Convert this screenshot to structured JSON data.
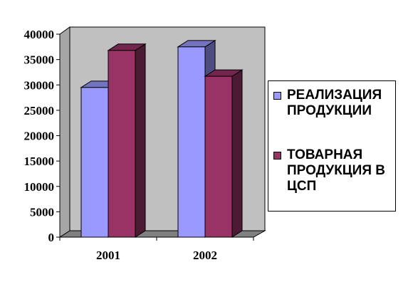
{
  "chart_data": {
    "type": "bar",
    "style": "3d-clustered-column",
    "categories": [
      "2001",
      "2002"
    ],
    "series": [
      {
        "name": "РЕАЛИЗАЦИЯ ПРОДУКЦИИ",
        "values": [
          29500,
          37500
        ],
        "color": "#9999ff"
      },
      {
        "name": "ТОВАРНАЯ ПРОДУКЦИЯ В ЦСП",
        "values": [
          36800,
          31700
        ],
        "color": "#993366"
      }
    ],
    "ylim": [
      0,
      40000
    ],
    "yticks": [
      "0",
      "5000",
      "10000",
      "15000",
      "20000",
      "25000",
      "30000",
      "35000",
      "40000"
    ],
    "grid": false,
    "legend": "right",
    "colors": {
      "wall": "#c0c0c0",
      "floor": "#808080"
    }
  }
}
